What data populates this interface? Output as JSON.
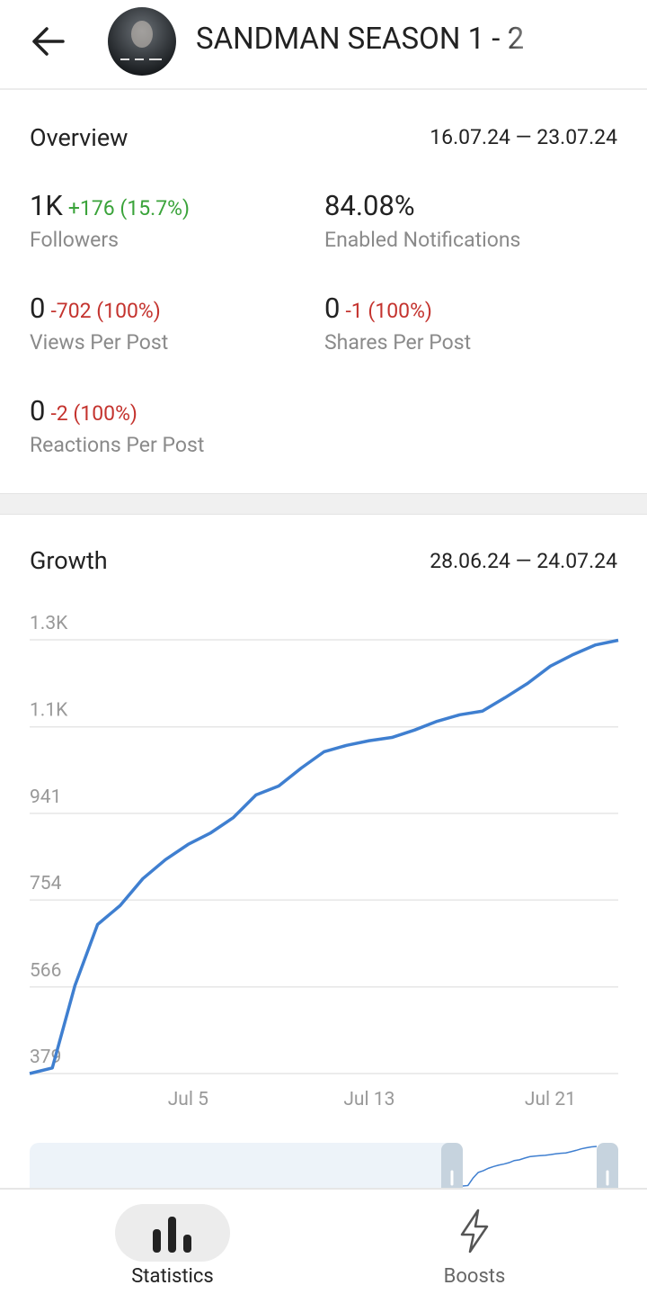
{
  "header": {
    "title": "SANDMAN SEASON 1 - 2"
  },
  "overview": {
    "title": "Overview",
    "range": "16.07.24 — 23.07.24",
    "stats": [
      {
        "value": "1K",
        "change": "+176 (15.7%)",
        "label": "Followers"
      },
      {
        "value": "84.08%",
        "label": "Enabled Notifications"
      },
      {
        "value": "0",
        "change": "-702 (100%)",
        "label": "Views Per Post"
      },
      {
        "value": "0",
        "change": "-1 (100%)",
        "label": "Shares Per Post"
      },
      {
        "value": "0",
        "change": "-2 (100%)",
        "label": "Reactions Per Post"
      }
    ]
  },
  "growth": {
    "title": "Growth",
    "range": "28.06.24 — 24.07.24"
  },
  "chart_data": {
    "type": "line",
    "color": "#3f7fd0",
    "grid": true,
    "categories": [
      null,
      null,
      null,
      null,
      null,
      null,
      null,
      "Jul 5",
      null,
      null,
      null,
      null,
      null,
      null,
      null,
      "Jul 13",
      null,
      null,
      null,
      null,
      null,
      null,
      null,
      "Jul 21",
      null,
      null,
      null
    ],
    "values": [
      379,
      391,
      569,
      701,
      742,
      800,
      841,
      874,
      899,
      932,
      981,
      1000,
      1039,
      1074,
      1088,
      1098,
      1105,
      1121,
      1140,
      1154,
      1162,
      1191,
      1222,
      1259,
      1284,
      1305,
      1315
    ],
    "ylim": [
      379,
      1316
    ],
    "yticks": [
      379,
      566,
      754,
      941,
      {
        "value": 1128,
        "label": "1.1K"
      },
      {
        "value": 1316,
        "label": "1.3K"
      }
    ]
  },
  "tabs": [
    {
      "label": "Statistics"
    },
    {
      "label": "Boosts"
    }
  ]
}
